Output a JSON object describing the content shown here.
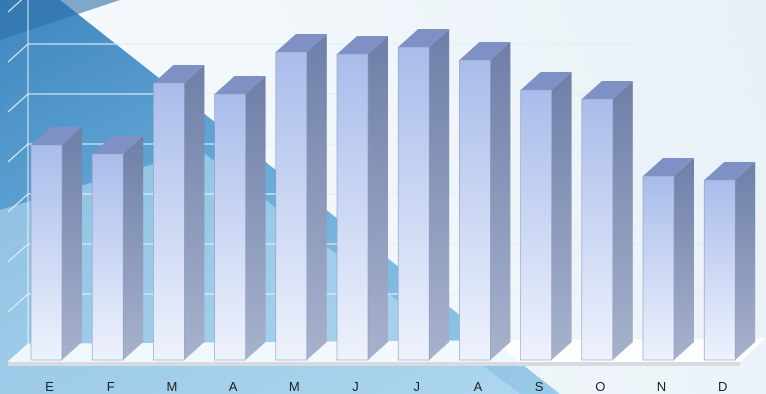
{
  "chart_data": {
    "type": "bar",
    "style": "3d-column",
    "categories": [
      "E",
      "F",
      "M",
      "A",
      "M",
      "J",
      "J",
      "A",
      "S",
      "O",
      "N",
      "D"
    ],
    "values": [
      215,
      206,
      277,
      266,
      308,
      306,
      313,
      300,
      270,
      261,
      184,
      180
    ],
    "ylim": [
      0,
      350
    ],
    "grid": true,
    "colors": {
      "bar_front": "#b8c8ee",
      "bar_side": "#7d8db3",
      "bar_top": "#7f90c4",
      "background_dark": "#3d86bf",
      "background_light": "#a9d3ee"
    }
  }
}
